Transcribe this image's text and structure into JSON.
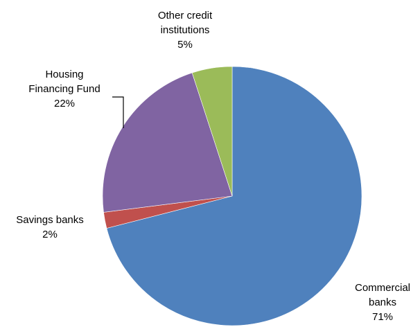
{
  "chart_data": {
    "type": "pie",
    "title": "",
    "slices": [
      {
        "label_lines": [
          "Commercial",
          "banks"
        ],
        "pct_label": "71%",
        "value": 71,
        "color": "#4F81BD"
      },
      {
        "label_lines": [
          "Savings banks"
        ],
        "pct_label": "2%",
        "value": 2,
        "color": "#C0504D"
      },
      {
        "label_lines": [
          "Housing",
          "Financing Fund"
        ],
        "pct_label": "22%",
        "value": 22,
        "color": "#8064A2"
      },
      {
        "label_lines": [
          "Other credit",
          "institutions"
        ],
        "pct_label": "5%",
        "value": 5,
        "color": "#9BBB59"
      }
    ],
    "start_angle_deg": 0,
    "direction": "clockwise",
    "legend": "none",
    "data_labels": "category name and percentage"
  }
}
